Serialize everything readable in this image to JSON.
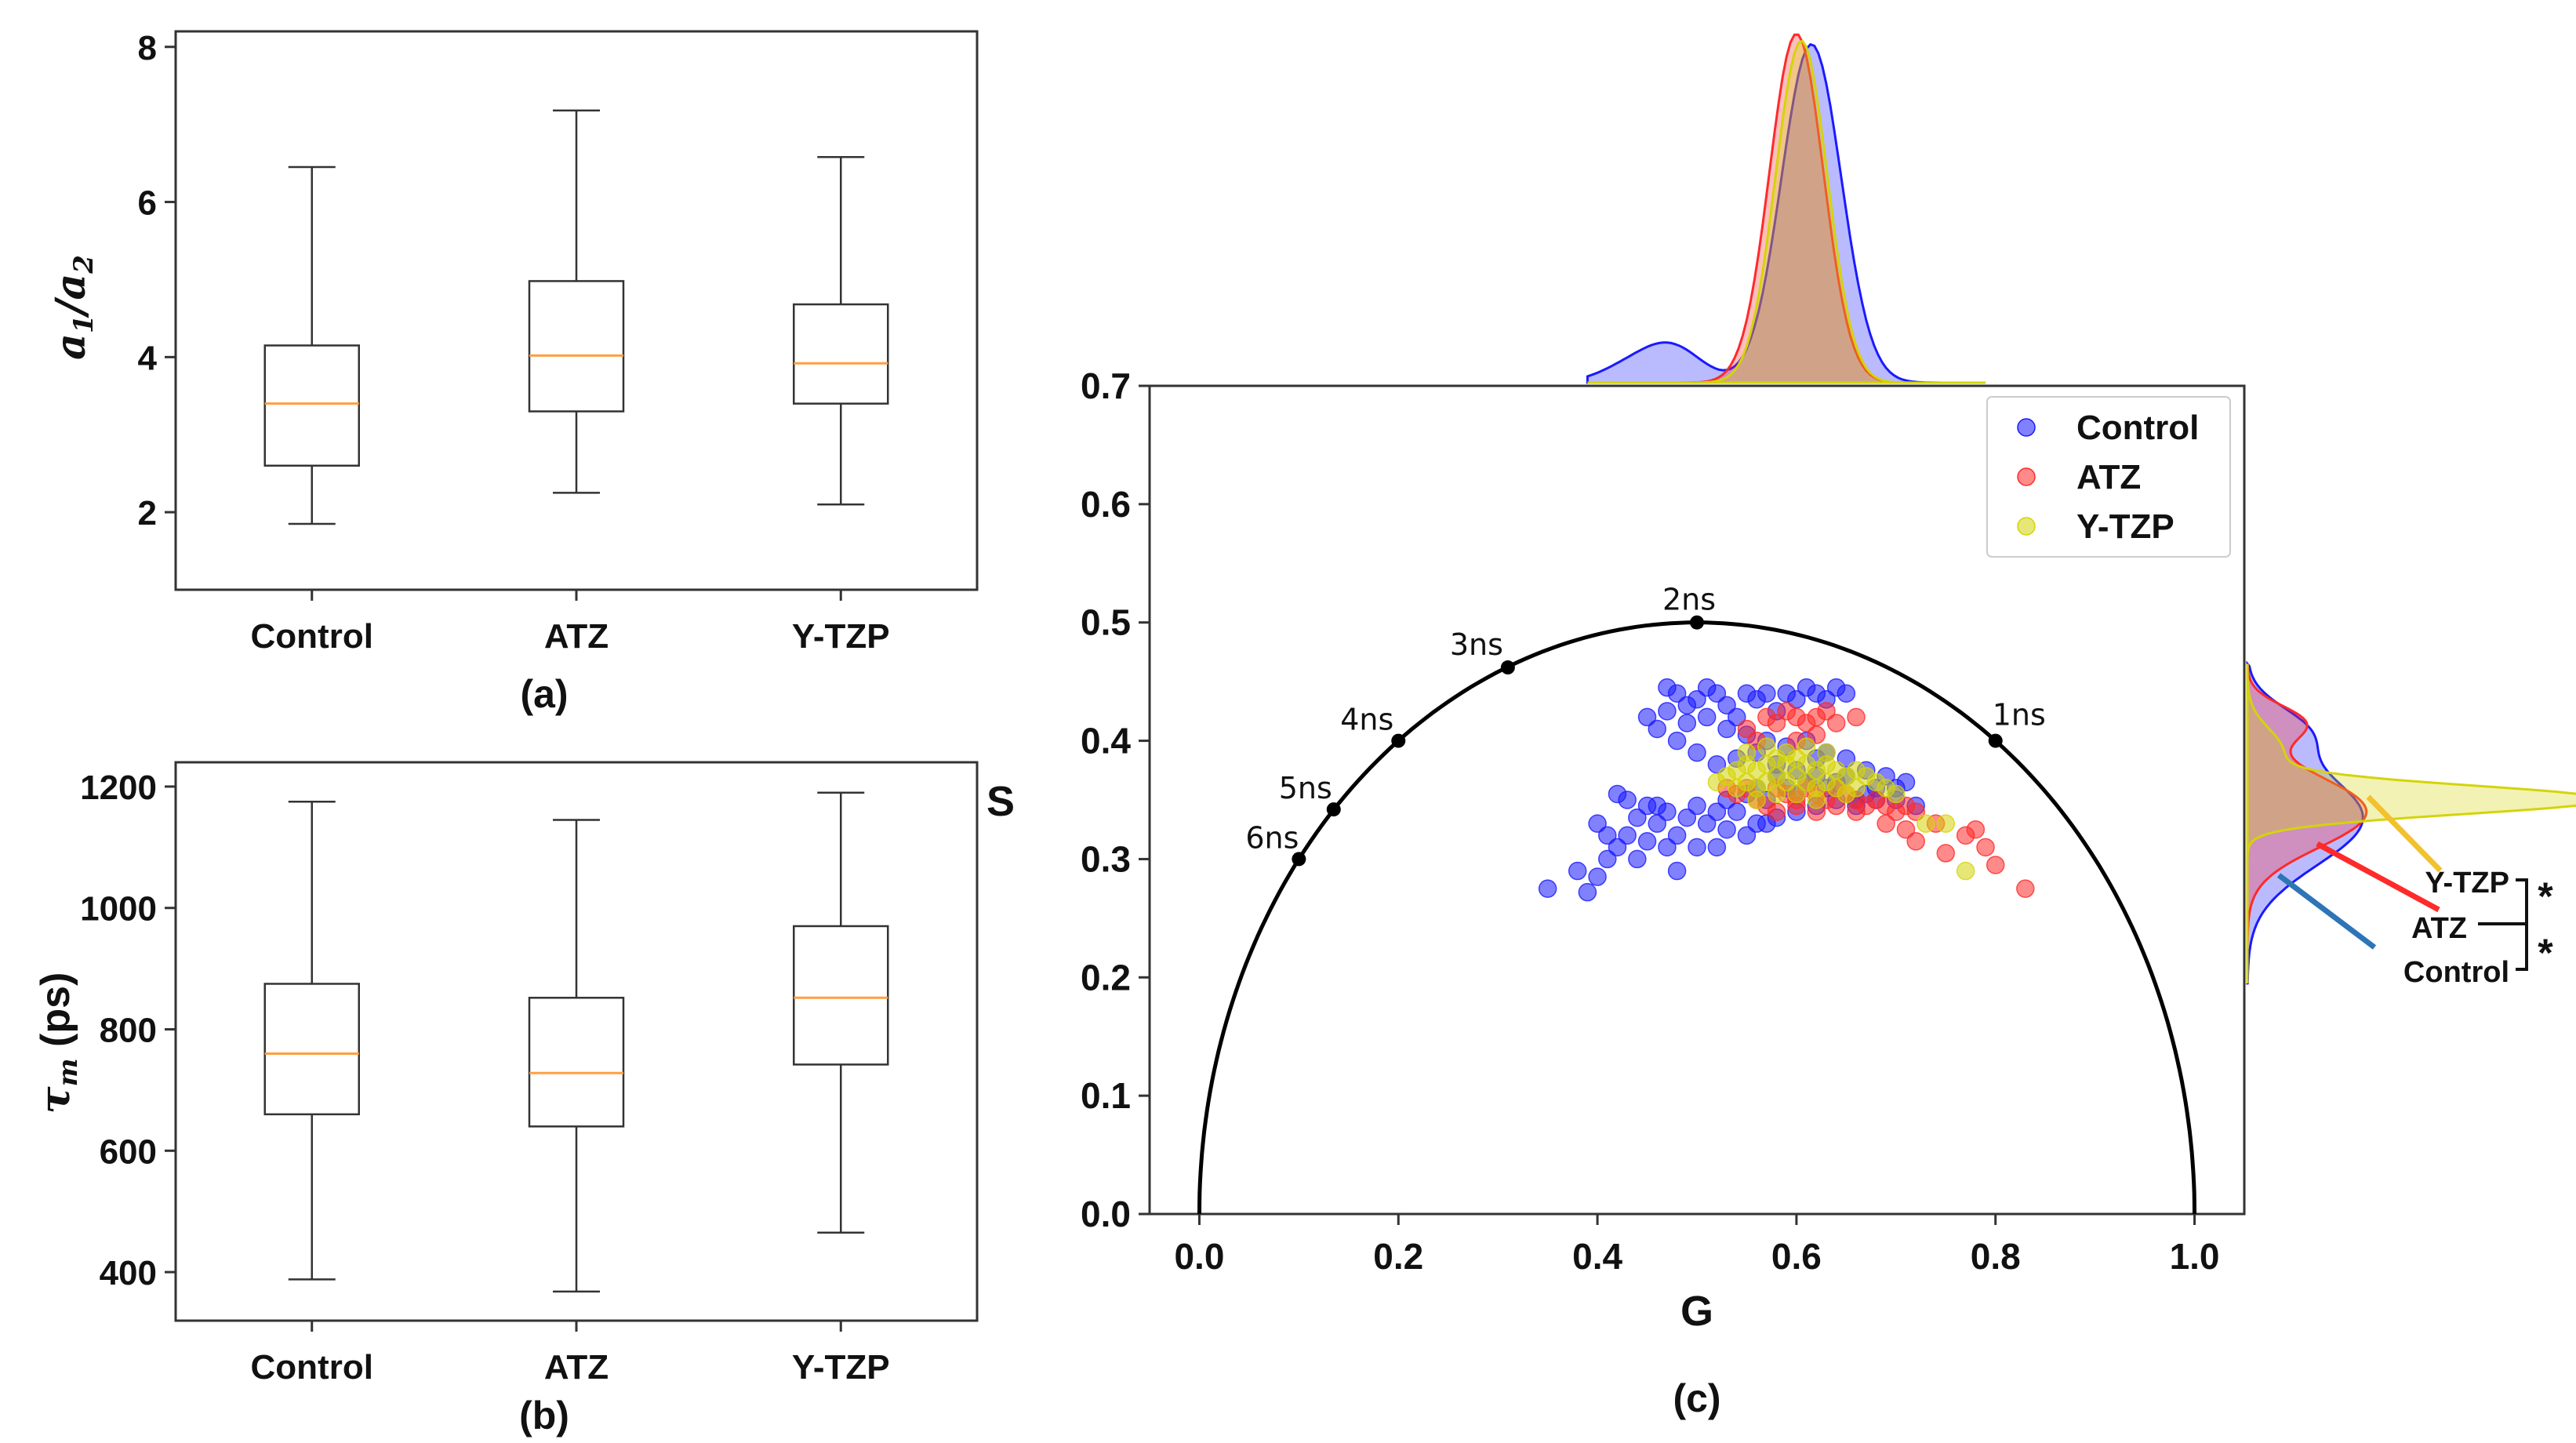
{
  "panel_labels": {
    "a": "(a)",
    "b": "(b)",
    "c": "(c)"
  },
  "y_label_a": {
    "main": "a",
    "sub1": "1",
    "slash": "/",
    "main2": "a",
    "sub2": "2"
  },
  "y_label_b": {
    "main": "τ",
    "sub": "m",
    "unit": " (ps)"
  },
  "colors": {
    "control": "#1a1aff",
    "atz": "#ff2a2a",
    "ytzp": "#d4d40a",
    "median": "#ff9f40",
    "control_line": "#2e75b6",
    "ytzp_line": "#f2c12e"
  },
  "significance": {
    "star_top": "*",
    "star_bottom": "*"
  },
  "chart_data": [
    {
      "type": "box",
      "panel": "a",
      "categories": [
        "Control",
        "ATZ",
        "Y-TZP"
      ],
      "boxes": [
        {
          "name": "Control",
          "whislo": 1.85,
          "q1": 2.6,
          "med": 3.4,
          "q3": 4.15,
          "whishi": 6.45
        },
        {
          "name": "ATZ",
          "whislo": 2.25,
          "q1": 3.3,
          "med": 4.02,
          "q3": 4.98,
          "whishi": 7.18
        },
        {
          "name": "Y-TZP",
          "whislo": 2.1,
          "q1": 3.4,
          "med": 3.92,
          "q3": 4.68,
          "whishi": 6.58
        }
      ],
      "ylim": [
        1.0,
        8.2
      ],
      "yticks": [
        2,
        4,
        6,
        8
      ],
      "xlabel": "",
      "ylabel": "a1/a2"
    },
    {
      "type": "box",
      "panel": "b",
      "categories": [
        "Control",
        "ATZ",
        "Y-TZP"
      ],
      "boxes": [
        {
          "name": "Control",
          "whislo": 388,
          "q1": 660,
          "med": 760,
          "q3": 875,
          "whishi": 1175
        },
        {
          "name": "ATZ",
          "whislo": 368,
          "q1": 640,
          "med": 728,
          "q3": 852,
          "whishi": 1145
        },
        {
          "name": "Y-TZP",
          "whislo": 465,
          "q1": 742,
          "med": 852,
          "q3": 970,
          "whishi": 1190
        }
      ],
      "ylim": [
        320,
        1240
      ],
      "yticks": [
        400,
        600,
        800,
        1000,
        1200
      ],
      "xlabel": "",
      "ylabel": "τm (ps)"
    },
    {
      "type": "scatter",
      "panel": "c",
      "title": "",
      "xlabel": "G",
      "ylabel": "S",
      "xlim": [
        -0.05,
        1.05
      ],
      "ylim": [
        0.0,
        0.7
      ],
      "xticks": [
        0.0,
        0.2,
        0.4,
        0.6,
        0.8,
        1.0
      ],
      "yticks": [
        0.0,
        0.1,
        0.2,
        0.3,
        0.4,
        0.5,
        0.6,
        0.7
      ],
      "legend": {
        "position": "top-right",
        "entries": [
          "Control",
          "ATZ",
          "Y-TZP"
        ]
      },
      "universal_circle": {
        "center": [
          0.5,
          0.0
        ],
        "radius": 0.5
      },
      "lifetime_markers": [
        {
          "label": "1ns",
          "g": 0.8,
          "s": 0.4
        },
        {
          "label": "2ns",
          "g": 0.5,
          "s": 0.5
        },
        {
          "label": "3ns",
          "g": 0.31,
          "s": 0.462
        },
        {
          "label": "4ns",
          "g": 0.2,
          "s": 0.4
        },
        {
          "label": "5ns",
          "g": 0.135,
          "s": 0.342
        },
        {
          "label": "6ns",
          "g": 0.1,
          "s": 0.3
        }
      ],
      "series": [
        {
          "name": "Control",
          "points": [
            [
              0.35,
              0.275
            ],
            [
              0.39,
              0.272
            ],
            [
              0.38,
              0.29
            ],
            [
              0.4,
              0.285
            ],
            [
              0.41,
              0.3
            ],
            [
              0.42,
              0.31
            ],
            [
              0.43,
              0.32
            ],
            [
              0.44,
              0.3
            ],
            [
              0.45,
              0.315
            ],
            [
              0.46,
              0.33
            ],
            [
              0.47,
              0.34
            ],
            [
              0.48,
              0.32
            ],
            [
              0.49,
              0.335
            ],
            [
              0.5,
              0.345
            ],
            [
              0.51,
              0.33
            ],
            [
              0.52,
              0.34
            ],
            [
              0.53,
              0.35
            ],
            [
              0.54,
              0.34
            ],
            [
              0.55,
              0.355
            ],
            [
              0.56,
              0.36
            ],
            [
              0.57,
              0.35
            ],
            [
              0.58,
              0.37
            ],
            [
              0.59,
              0.36
            ],
            [
              0.6,
              0.355
            ],
            [
              0.61,
              0.365
            ],
            [
              0.62,
              0.37
            ],
            [
              0.63,
              0.36
            ],
            [
              0.64,
              0.365
            ],
            [
              0.65,
              0.37
            ],
            [
              0.66,
              0.35
            ],
            [
              0.67,
              0.355
            ],
            [
              0.68,
              0.36
            ],
            [
              0.69,
              0.37
            ],
            [
              0.7,
              0.36
            ],
            [
              0.71,
              0.365
            ],
            [
              0.42,
              0.355
            ],
            [
              0.43,
              0.35
            ],
            [
              0.45,
              0.345
            ],
            [
              0.47,
              0.31
            ],
            [
              0.48,
              0.29
            ],
            [
              0.5,
              0.31
            ],
            [
              0.52,
              0.31
            ],
            [
              0.55,
              0.32
            ],
            [
              0.57,
              0.33
            ],
            [
              0.4,
              0.33
            ],
            [
              0.41,
              0.32
            ],
            [
              0.44,
              0.335
            ],
            [
              0.46,
              0.345
            ],
            [
              0.53,
              0.325
            ],
            [
              0.56,
              0.33
            ],
            [
              0.58,
              0.335
            ],
            [
              0.6,
              0.34
            ],
            [
              0.62,
              0.345
            ],
            [
              0.64,
              0.35
            ],
            [
              0.66,
              0.345
            ],
            [
              0.68,
              0.35
            ],
            [
              0.7,
              0.35
            ],
            [
              0.72,
              0.345
            ],
            [
              0.47,
              0.445
            ],
            [
              0.48,
              0.44
            ],
            [
              0.49,
              0.43
            ],
            [
              0.5,
              0.435
            ],
            [
              0.51,
              0.445
            ],
            [
              0.52,
              0.44
            ],
            [
              0.53,
              0.43
            ],
            [
              0.54,
              0.42
            ],
            [
              0.55,
              0.44
            ],
            [
              0.56,
              0.435
            ],
            [
              0.57,
              0.44
            ],
            [
              0.58,
              0.425
            ],
            [
              0.59,
              0.44
            ],
            [
              0.6,
              0.435
            ],
            [
              0.61,
              0.445
            ],
            [
              0.62,
              0.44
            ],
            [
              0.63,
              0.435
            ],
            [
              0.64,
              0.445
            ],
            [
              0.65,
              0.44
            ],
            [
              0.47,
              0.425
            ],
            [
              0.49,
              0.415
            ],
            [
              0.51,
              0.42
            ],
            [
              0.53,
              0.41
            ],
            [
              0.55,
              0.405
            ],
            [
              0.57,
              0.4
            ],
            [
              0.59,
              0.395
            ],
            [
              0.61,
              0.4
            ],
            [
              0.63,
              0.39
            ],
            [
              0.65,
              0.385
            ],
            [
              0.67,
              0.375
            ],
            [
              0.52,
              0.38
            ],
            [
              0.54,
              0.385
            ],
            [
              0.56,
              0.39
            ],
            [
              0.58,
              0.38
            ],
            [
              0.6,
              0.375
            ],
            [
              0.62,
              0.385
            ],
            [
              0.5,
              0.39
            ],
            [
              0.48,
              0.4
            ],
            [
              0.46,
              0.41
            ],
            [
              0.45,
              0.42
            ]
          ]
        },
        {
          "name": "ATZ",
          "points": [
            [
              0.57,
              0.42
            ],
            [
              0.58,
              0.415
            ],
            [
              0.59,
              0.425
            ],
            [
              0.6,
              0.42
            ],
            [
              0.61,
              0.415
            ],
            [
              0.62,
              0.42
            ],
            [
              0.63,
              0.425
            ],
            [
              0.64,
              0.415
            ],
            [
              0.66,
              0.42
            ],
            [
              0.55,
              0.41
            ],
            [
              0.56,
              0.4
            ],
            [
              0.6,
              0.4
            ],
            [
              0.62,
              0.405
            ],
            [
              0.58,
              0.36
            ],
            [
              0.59,
              0.355
            ],
            [
              0.6,
              0.35
            ],
            [
              0.61,
              0.36
            ],
            [
              0.62,
              0.355
            ],
            [
              0.63,
              0.35
            ],
            [
              0.64,
              0.36
            ],
            [
              0.65,
              0.355
            ],
            [
              0.66,
              0.35
            ],
            [
              0.67,
              0.345
            ],
            [
              0.68,
              0.35
            ],
            [
              0.69,
              0.345
            ],
            [
              0.7,
              0.34
            ],
            [
              0.71,
              0.345
            ],
            [
              0.72,
              0.34
            ],
            [
              0.56,
              0.35
            ],
            [
              0.57,
              0.345
            ],
            [
              0.58,
              0.34
            ],
            [
              0.6,
              0.345
            ],
            [
              0.62,
              0.34
            ],
            [
              0.64,
              0.345
            ],
            [
              0.66,
              0.34
            ],
            [
              0.69,
              0.33
            ],
            [
              0.71,
              0.325
            ],
            [
              0.72,
              0.315
            ],
            [
              0.74,
              0.33
            ],
            [
              0.77,
              0.32
            ],
            [
              0.78,
              0.325
            ],
            [
              0.79,
              0.31
            ],
            [
              0.8,
              0.295
            ],
            [
              0.83,
              0.275
            ],
            [
              0.75,
              0.305
            ],
            [
              0.54,
              0.355
            ],
            [
              0.55,
              0.36
            ],
            [
              0.53,
              0.36
            ]
          ]
        },
        {
          "name": "Y-TZP",
          "points": [
            [
              0.53,
              0.37
            ],
            [
              0.54,
              0.375
            ],
            [
              0.55,
              0.38
            ],
            [
              0.56,
              0.375
            ],
            [
              0.57,
              0.38
            ],
            [
              0.58,
              0.385
            ],
            [
              0.59,
              0.38
            ],
            [
              0.6,
              0.385
            ],
            [
              0.61,
              0.38
            ],
            [
              0.62,
              0.375
            ],
            [
              0.63,
              0.38
            ],
            [
              0.64,
              0.375
            ],
            [
              0.65,
              0.37
            ],
            [
              0.66,
              0.375
            ],
            [
              0.67,
              0.37
            ],
            [
              0.68,
              0.365
            ],
            [
              0.54,
              0.36
            ],
            [
              0.55,
              0.365
            ],
            [
              0.56,
              0.36
            ],
            [
              0.57,
              0.365
            ],
            [
              0.58,
              0.37
            ],
            [
              0.59,
              0.365
            ],
            [
              0.6,
              0.37
            ],
            [
              0.61,
              0.365
            ],
            [
              0.62,
              0.36
            ],
            [
              0.63,
              0.365
            ],
            [
              0.64,
              0.36
            ],
            [
              0.65,
              0.355
            ],
            [
              0.66,
              0.36
            ],
            [
              0.55,
              0.39
            ],
            [
              0.57,
              0.395
            ],
            [
              0.59,
              0.39
            ],
            [
              0.61,
              0.395
            ],
            [
              0.63,
              0.39
            ],
            [
              0.6,
              0.355
            ],
            [
              0.58,
              0.355
            ],
            [
              0.56,
              0.35
            ],
            [
              0.62,
              0.35
            ],
            [
              0.52,
              0.365
            ],
            [
              0.69,
              0.36
            ],
            [
              0.7,
              0.355
            ],
            [
              0.73,
              0.33
            ],
            [
              0.75,
              0.33
            ],
            [
              0.77,
              0.29
            ]
          ]
        }
      ],
      "marginal_g": {
        "series": [
          "Control",
          "ATZ",
          "Y-TZP"
        ],
        "peak_g": [
          0.615,
          0.6,
          0.605
        ]
      },
      "marginal_s": {
        "series": [
          "Control",
          "ATZ",
          "Y-TZP"
        ],
        "peak_s": [
          0.335,
          0.34,
          0.35
        ]
      },
      "marginal_labels": [
        "Y-TZP",
        "ATZ",
        "Control"
      ]
    }
  ]
}
